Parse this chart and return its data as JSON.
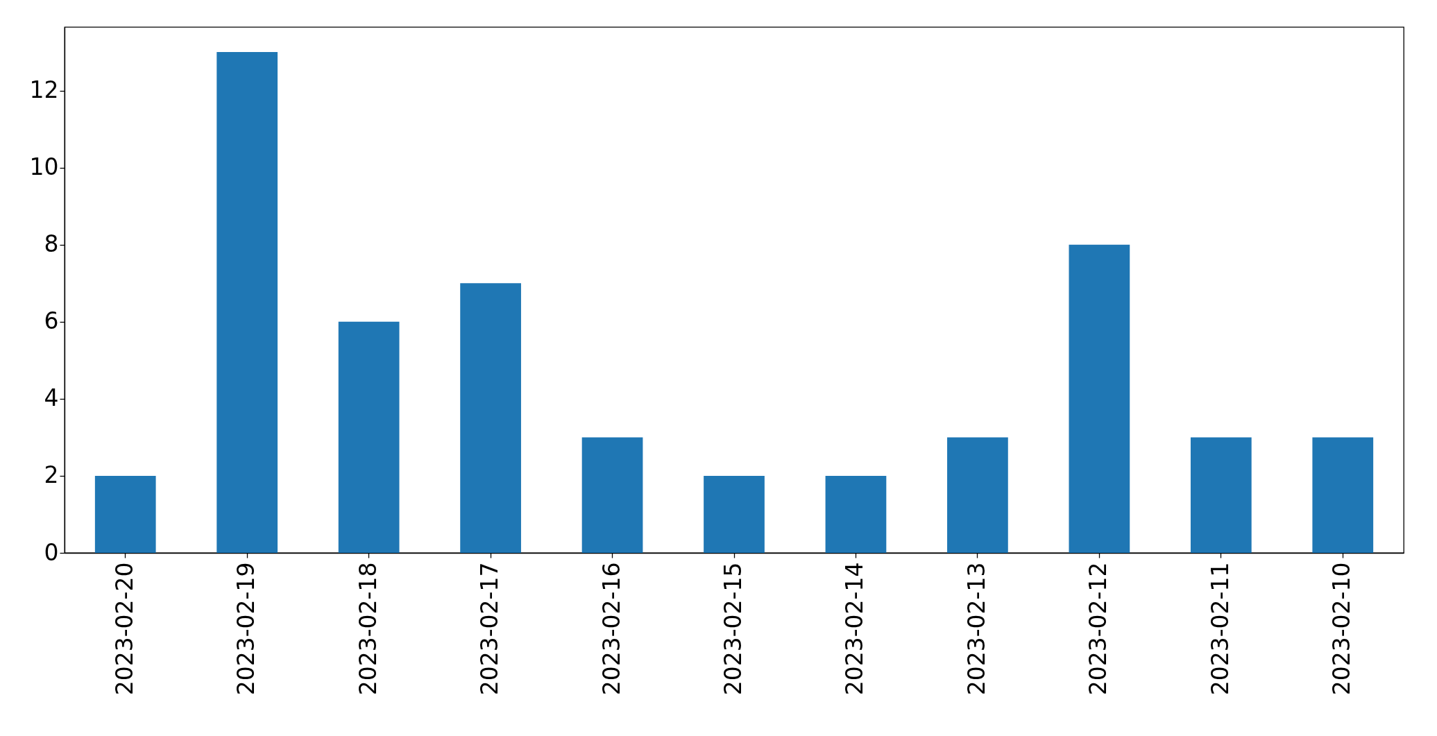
{
  "chart_data": {
    "type": "bar",
    "categories": [
      "2023-02-20",
      "2023-02-19",
      "2023-02-18",
      "2023-02-17",
      "2023-02-16",
      "2023-02-15",
      "2023-02-14",
      "2023-02-13",
      "2023-02-12",
      "2023-02-11",
      "2023-02-10"
    ],
    "values": [
      2,
      13,
      6,
      7,
      3,
      2,
      2,
      3,
      8,
      3,
      3
    ],
    "color": "#1f77b4",
    "ylim": [
      0,
      13.65
    ],
    "yticks": [
      0,
      2,
      4,
      6,
      8,
      10,
      12
    ]
  }
}
